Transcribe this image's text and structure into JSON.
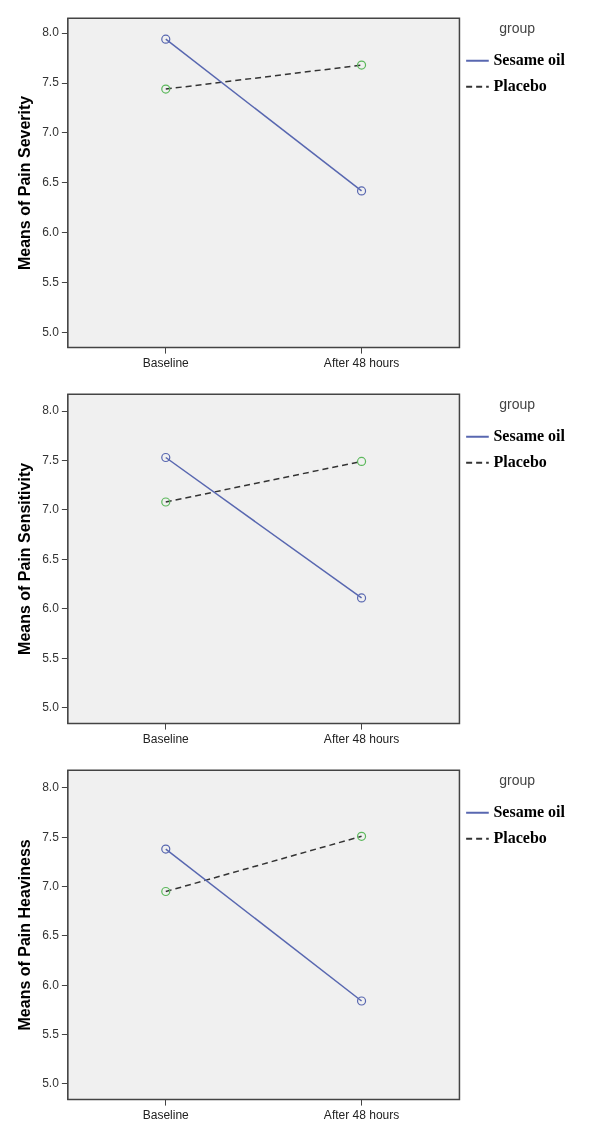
{
  "chart_data": [
    {
      "type": "line",
      "ylabel": "Means of Pain Severity",
      "categories": [
        "Baseline",
        "After 48 hours"
      ],
      "ylim": [
        4.85,
        8.15
      ],
      "yticks": [
        {
          "value": 5,
          "label": "5.0"
        },
        5.5,
        {
          "value": 6,
          "label": "6.0"
        },
        6.5,
        {
          "value": 7,
          "label": "7.0"
        },
        7.5,
        {
          "value": 8,
          "label": "8.0"
        }
      ],
      "legend": "top right",
      "legend_title": "group",
      "marker": "circle",
      "series": [
        {
          "name": "Sesame oil",
          "color": "#5867b0",
          "line_style": "solid",
          "values": [
            7.94,
            6.42
          ]
        },
        {
          "name": "Placebo",
          "color": "#333333",
          "colors": [
            "#5cb85c",
            "#5cb85c"
          ],
          "line_style": "dashed",
          "values": [
            7.44,
            7.68
          ]
        }
      ]
    },
    {
      "type": "line",
      "ylabel": "Means of Pain Sensitivity",
      "categories": [
        "Baseline",
        "After 48 hours"
      ],
      "ylim": [
        4.84,
        8.17
      ],
      "yticks": [
        {
          "value": 5,
          "label": "5.0"
        },
        5.5,
        {
          "value": 6,
          "label": "6.0"
        },
        6.5,
        {
          "value": 7,
          "label": "7.0"
        },
        7.5,
        {
          "value": 8,
          "label": "8.0"
        }
      ],
      "legend": "top right",
      "legend_title": "group",
      "marker": "circle",
      "series": [
        {
          "name": "Sesame oil",
          "color": "#5867b0",
          "line_style": "solid",
          "values": [
            7.53,
            6.11
          ]
        },
        {
          "name": "Placebo",
          "color": "#333333",
          "colors": [
            "#5cb85c",
            "#5cb85c"
          ],
          "line_style": "dashed",
          "values": [
            7.08,
            7.49
          ]
        }
      ]
    },
    {
      "type": "line",
      "ylabel": "Means of Pain Heaviness",
      "categories": [
        "Baseline",
        "After 48 hours"
      ],
      "ylim": [
        4.84,
        8.18
      ],
      "yticks": [
        {
          "value": 5,
          "label": "5.0"
        },
        5.5,
        {
          "value": 6,
          "label": "6.0"
        },
        6.5,
        {
          "value": 7,
          "label": "7.0"
        },
        7.5,
        {
          "value": 8,
          "label": "8.0"
        }
      ],
      "legend": "top right",
      "legend_title": "group",
      "marker": "circle",
      "series": [
        {
          "name": "Sesame oil",
          "color": "#5867b0",
          "line_style": "solid",
          "values": [
            7.38,
            5.84
          ]
        },
        {
          "name": "Placebo",
          "color": "#333333",
          "colors": [
            "#5cb85c",
            "#5cb85c"
          ],
          "line_style": "dashed",
          "values": [
            6.95,
            7.51
          ]
        }
      ]
    }
  ]
}
